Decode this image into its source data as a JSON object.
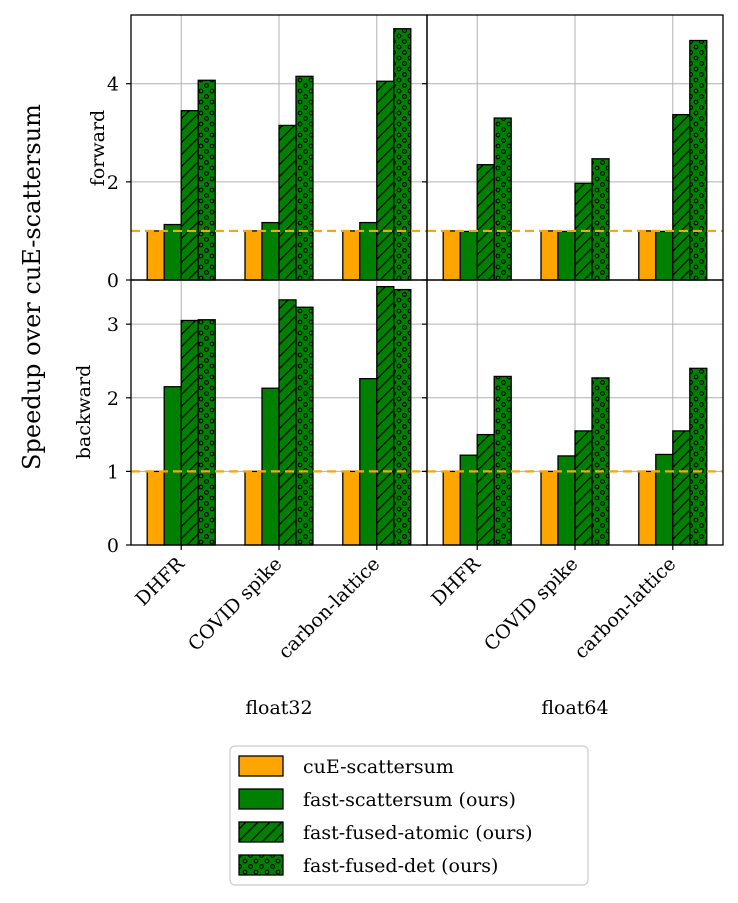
{
  "chart_data": {
    "type": "bar",
    "ylabel": "Speedup over cuE-scattersum",
    "row_labels": [
      "forward",
      "backward"
    ],
    "col_labels": [
      "float32",
      "float64"
    ],
    "categories": [
      "DHFR",
      "COVID spike",
      "carbon-lattice"
    ],
    "baseline": 1,
    "baseline_color": "#FFA500",
    "series": [
      {
        "name": "cuE-scattersum",
        "color": "#FFA500",
        "hatch": "none"
      },
      {
        "name": "fast-scattersum (ours)",
        "color": "#008000",
        "hatch": "none"
      },
      {
        "name": "fast-fused-atomic (ours)",
        "color": "#008000",
        "hatch": "diagonal"
      },
      {
        "name": "fast-fused-det (ours)",
        "color": "#008000",
        "hatch": "dots"
      }
    ],
    "rows": [
      {
        "label": "forward",
        "ylim": [
          0,
          5.4
        ],
        "yticks": [
          0,
          2,
          4
        ],
        "panels": [
          {
            "column": "float32",
            "values": [
              [
                1.0,
                1.0,
                1.0
              ],
              [
                1.13,
                1.17,
                1.17
              ],
              [
                3.45,
                3.15,
                4.05
              ],
              [
                4.07,
                4.15,
                5.12
              ]
            ]
          },
          {
            "column": "float64",
            "values": [
              [
                1.0,
                1.0,
                1.0
              ],
              [
                0.99,
                0.99,
                0.99
              ],
              [
                2.35,
                1.97,
                3.37
              ],
              [
                3.3,
                2.47,
                4.88
              ]
            ]
          }
        ]
      },
      {
        "label": "backward",
        "ylim": [
          0,
          3.6
        ],
        "yticks": [
          0,
          1,
          2,
          3
        ],
        "panels": [
          {
            "column": "float32",
            "values": [
              [
                1.0,
                1.0,
                1.0
              ],
              [
                2.15,
                2.13,
                2.26
              ],
              [
                3.05,
                3.33,
                3.51
              ],
              [
                3.06,
                3.23,
                3.47
              ]
            ]
          },
          {
            "column": "float64",
            "values": [
              [
                1.0,
                1.0,
                1.0
              ],
              [
                1.22,
                1.21,
                1.23
              ],
              [
                1.5,
                1.55,
                1.55
              ],
              [
                2.29,
                2.27,
                2.4
              ]
            ]
          }
        ]
      }
    ],
    "grid": true,
    "legend_position": "bottom-center"
  }
}
